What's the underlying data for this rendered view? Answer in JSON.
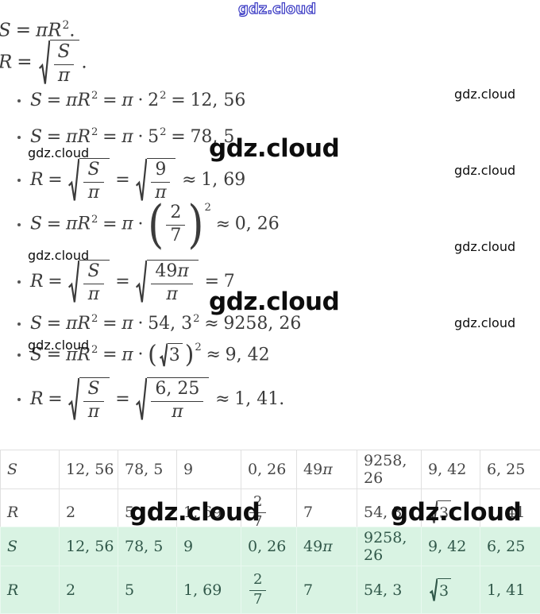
{
  "brand": {
    "name": "gdz.cloud"
  },
  "colors": {
    "math_text": "#3b3b3b",
    "white_table_border": "#e0e0e0",
    "white_table_text": "#474747",
    "green_table_bg": "#d9f3e3",
    "green_table_border": "#e9f8ef",
    "green_table_text": "#31584a",
    "watermark_blue": "#3a3ac4"
  },
  "formulas": [
    {
      "id": "def-s",
      "bullet": false,
      "tokens": [
        {
          "t": "v",
          "v": "S"
        },
        {
          "t": "o",
          "v": "="
        },
        {
          "t": "v",
          "v": "π"
        },
        {
          "t": "v",
          "v": "R"
        },
        {
          "t": "s",
          "v": "2"
        },
        {
          "t": "n",
          "v": "."
        }
      ]
    },
    {
      "id": "def-r",
      "bullet": false,
      "tokens": [
        {
          "t": "v",
          "v": "R"
        },
        {
          "t": "o",
          "v": "="
        },
        {
          "t": "sqrt",
          "big": true,
          "c": [
            {
              "t": "frac",
              "n": [
                {
                  "t": "v",
                  "v": "S"
                }
              ],
              "d": [
                {
                  "t": "v",
                  "v": "π"
                }
              ]
            }
          ]
        },
        {
          "t": "n",
          "v": "."
        }
      ]
    },
    {
      "id": "case-1",
      "bullet": true,
      "tokens": [
        {
          "t": "v",
          "v": "S"
        },
        {
          "t": "o",
          "v": "="
        },
        {
          "t": "v",
          "v": "π"
        },
        {
          "t": "v",
          "v": "R"
        },
        {
          "t": "s",
          "v": "2"
        },
        {
          "t": "o",
          "v": "="
        },
        {
          "t": "v",
          "v": "π"
        },
        {
          "t": "o",
          "v": "·"
        },
        {
          "t": "n",
          "v": "2"
        },
        {
          "t": "s",
          "v": "2"
        },
        {
          "t": "o",
          "v": "="
        },
        {
          "t": "n",
          "v": "12, 56"
        }
      ]
    },
    {
      "id": "case-2",
      "bullet": true,
      "tokens": [
        {
          "t": "v",
          "v": "S"
        },
        {
          "t": "o",
          "v": "="
        },
        {
          "t": "v",
          "v": "π"
        },
        {
          "t": "v",
          "v": "R"
        },
        {
          "t": "s",
          "v": "2"
        },
        {
          "t": "o",
          "v": "="
        },
        {
          "t": "v",
          "v": "π"
        },
        {
          "t": "o",
          "v": "·"
        },
        {
          "t": "n",
          "v": "5"
        },
        {
          "t": "s",
          "v": "2"
        },
        {
          "t": "o",
          "v": "="
        },
        {
          "t": "n",
          "v": "78, 5"
        }
      ]
    },
    {
      "id": "case-3",
      "bullet": true,
      "tokens": [
        {
          "t": "v",
          "v": "R"
        },
        {
          "t": "o",
          "v": "="
        },
        {
          "t": "sqrt",
          "big": true,
          "c": [
            {
              "t": "frac",
              "n": [
                {
                  "t": "v",
                  "v": "S"
                }
              ],
              "d": [
                {
                  "t": "v",
                  "v": "π"
                }
              ]
            }
          ]
        },
        {
          "t": "o",
          "v": "="
        },
        {
          "t": "sqrt",
          "big": true,
          "c": [
            {
              "t": "frac",
              "n": [
                {
                  "t": "n",
                  "v": "9"
                }
              ],
              "d": [
                {
                  "t": "v",
                  "v": "π"
                }
              ]
            }
          ]
        },
        {
          "t": "o",
          "v": "≈"
        },
        {
          "t": "n",
          "v": "1, 69"
        }
      ]
    },
    {
      "id": "case-4",
      "bullet": true,
      "tokens": [
        {
          "t": "v",
          "v": "S"
        },
        {
          "t": "o",
          "v": "="
        },
        {
          "t": "v",
          "v": "π"
        },
        {
          "t": "v",
          "v": "R"
        },
        {
          "t": "s",
          "v": "2"
        },
        {
          "t": "o",
          "v": "="
        },
        {
          "t": "v",
          "v": "π"
        },
        {
          "t": "o",
          "v": "·"
        },
        {
          "t": "par",
          "big": true,
          "sup": "2",
          "c": [
            {
              "t": "frac",
              "n": [
                {
                  "t": "n",
                  "v": "2"
                }
              ],
              "d": [
                {
                  "t": "n",
                  "v": "7"
                }
              ]
            }
          ]
        },
        {
          "t": "o",
          "v": "≈"
        },
        {
          "t": "n",
          "v": "0, 26"
        }
      ]
    },
    {
      "id": "case-5",
      "bullet": true,
      "tokens": [
        {
          "t": "v",
          "v": "R"
        },
        {
          "t": "o",
          "v": "="
        },
        {
          "t": "sqrt",
          "big": true,
          "c": [
            {
              "t": "frac",
              "n": [
                {
                  "t": "v",
                  "v": "S"
                }
              ],
              "d": [
                {
                  "t": "v",
                  "v": "π"
                }
              ]
            }
          ]
        },
        {
          "t": "o",
          "v": "="
        },
        {
          "t": "sqrt",
          "big": true,
          "c": [
            {
              "t": "frac",
              "n": [
                {
                  "t": "n",
                  "v": "49"
                },
                {
                  "t": "v",
                  "v": "π"
                }
              ],
              "d": [
                {
                  "t": "v",
                  "v": "π"
                }
              ]
            }
          ]
        },
        {
          "t": "o",
          "v": "="
        },
        {
          "t": "n",
          "v": "7"
        }
      ]
    },
    {
      "id": "case-6",
      "bullet": true,
      "tokens": [
        {
          "t": "v",
          "v": "S"
        },
        {
          "t": "o",
          "v": "="
        },
        {
          "t": "v",
          "v": "π"
        },
        {
          "t": "v",
          "v": "R"
        },
        {
          "t": "s",
          "v": "2"
        },
        {
          "t": "o",
          "v": "="
        },
        {
          "t": "v",
          "v": "π"
        },
        {
          "t": "o",
          "v": "·"
        },
        {
          "t": "n",
          "v": "54, 3"
        },
        {
          "t": "s",
          "v": "2"
        },
        {
          "t": "o",
          "v": "≈"
        },
        {
          "t": "n",
          "v": "9258, 26"
        }
      ]
    },
    {
      "id": "case-7",
      "bullet": true,
      "tokens": [
        {
          "t": "v",
          "v": "S"
        },
        {
          "t": "o",
          "v": "="
        },
        {
          "t": "v",
          "v": "π"
        },
        {
          "t": "v",
          "v": "R"
        },
        {
          "t": "s",
          "v": "2"
        },
        {
          "t": "o",
          "v": "="
        },
        {
          "t": "v",
          "v": "π"
        },
        {
          "t": "o",
          "v": "·"
        },
        {
          "t": "par",
          "big": false,
          "sup": "2",
          "c": [
            {
              "t": "sqrt",
              "big": false,
              "c": [
                {
                  "t": "n",
                  "v": "3"
                }
              ]
            }
          ]
        },
        {
          "t": "o",
          "v": "≈"
        },
        {
          "t": "n",
          "v": "9, 42"
        }
      ]
    },
    {
      "id": "case-8",
      "bullet": true,
      "tokens": [
        {
          "t": "v",
          "v": "R"
        },
        {
          "t": "o",
          "v": "="
        },
        {
          "t": "sqrt",
          "big": true,
          "c": [
            {
              "t": "frac",
              "n": [
                {
                  "t": "v",
                  "v": "S"
                }
              ],
              "d": [
                {
                  "t": "v",
                  "v": "π"
                }
              ]
            }
          ]
        },
        {
          "t": "o",
          "v": "="
        },
        {
          "t": "sqrt",
          "big": true,
          "c": [
            {
              "t": "frac",
              "n": [
                {
                  "t": "n",
                  "v": "6, 25"
                }
              ],
              "d": [
                {
                  "t": "v",
                  "v": "π"
                }
              ]
            }
          ]
        },
        {
          "t": "o",
          "v": "≈"
        },
        {
          "t": "n",
          "v": "1, 41"
        },
        {
          "t": "n",
          "v": "."
        }
      ]
    }
  ],
  "table": {
    "rows": [
      [
        [
          {
            "t": "v",
            "v": "S"
          }
        ],
        [
          {
            "t": "n",
            "v": "12, 56"
          }
        ],
        [
          {
            "t": "n",
            "v": "78, 5"
          }
        ],
        [
          {
            "t": "n",
            "v": "9"
          }
        ],
        [
          {
            "t": "n",
            "v": "0, 26"
          }
        ],
        [
          {
            "t": "n",
            "v": "49"
          },
          {
            "t": "v",
            "v": "π"
          }
        ],
        [
          {
            "t": "n",
            "v": "9258, 26"
          }
        ],
        [
          {
            "t": "n",
            "v": "9, 42"
          }
        ],
        [
          {
            "t": "n",
            "v": "6, 25"
          }
        ]
      ],
      [
        [
          {
            "t": "v",
            "v": "R"
          }
        ],
        [
          {
            "t": "n",
            "v": "2"
          }
        ],
        [
          {
            "t": "n",
            "v": "5"
          }
        ],
        [
          {
            "t": "n",
            "v": "1, 69"
          }
        ],
        [
          {
            "t": "frac",
            "n": [
              {
                "t": "n",
                "v": "2"
              }
            ],
            "d": [
              {
                "t": "n",
                "v": "7"
              }
            ]
          }
        ],
        [
          {
            "t": "n",
            "v": "7"
          }
        ],
        [
          {
            "t": "n",
            "v": "54, 3"
          }
        ],
        [
          {
            "t": "sqrt",
            "big": false,
            "c": [
              {
                "t": "n",
                "v": "3"
              }
            ]
          }
        ],
        [
          {
            "t": "n",
            "v": "1, 41"
          }
        ]
      ]
    ]
  }
}
